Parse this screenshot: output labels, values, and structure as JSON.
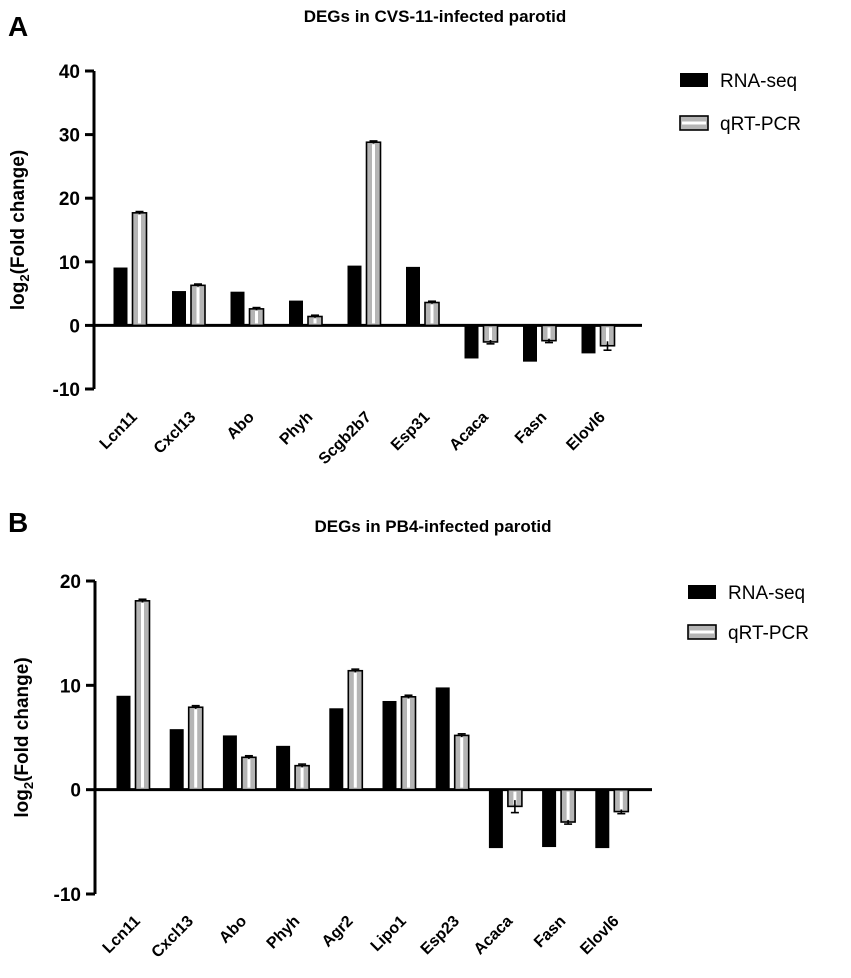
{
  "panels": [
    {
      "letter": "A"
    },
    {
      "letter": "B"
    }
  ],
  "chart_data": [
    {
      "type": "bar",
      "title": "DEGs in CVS-11-infected parotid",
      "ylabel_main": "log",
      "ylabel_sub": "2",
      "ylabel_rest": "(Fold change)",
      "xlabel": "",
      "ylim": [
        -10,
        40
      ],
      "yticks": [
        -10,
        0,
        10,
        20,
        30,
        40
      ],
      "categories": [
        "Lcn11",
        "Cxcl13",
        "Abo",
        "Phyh",
        "Scgb2b7",
        "Esp31",
        "Acaca",
        "Fasn",
        "Elovl6"
      ],
      "series": [
        {
          "name": "RNA-seq",
          "color": "#000000",
          "values": [
            9.1,
            5.4,
            5.3,
            3.9,
            9.4,
            9.2,
            -5.2,
            -5.7,
            -4.4
          ],
          "errors": [
            0,
            0,
            0,
            0,
            0,
            0,
            0,
            0,
            0
          ]
        },
        {
          "name": "qRT-PCR",
          "color": "#b5b5b5",
          "values": [
            17.7,
            6.3,
            2.6,
            1.4,
            28.8,
            3.6,
            -2.6,
            -2.4,
            -3.2
          ],
          "errors": [
            0.2,
            0.2,
            0.2,
            0.2,
            0.2,
            0.2,
            0.3,
            0.3,
            0.7
          ]
        }
      ],
      "legend": [
        "RNA-seq",
        "qRT-PCR"
      ]
    },
    {
      "type": "bar",
      "title": "DEGs in PB4-infected parotid",
      "ylabel_main": "log",
      "ylabel_sub": "2",
      "ylabel_rest": "(Fold change)",
      "xlabel": "",
      "ylim": [
        -10,
        20
      ],
      "yticks": [
        -10,
        0,
        10,
        20
      ],
      "categories": [
        "Lcn11",
        "Cxcl13",
        "Abo",
        "Phyh",
        "Agr2",
        "Lipo1",
        "Esp23",
        "Acaca",
        "Fasn",
        "Elovl6"
      ],
      "series": [
        {
          "name": "RNA-seq",
          "color": "#000000",
          "values": [
            9.0,
            5.8,
            5.2,
            4.2,
            7.8,
            8.5,
            9.8,
            -5.6,
            -5.5,
            -5.6
          ],
          "errors": [
            0,
            0,
            0,
            0,
            0,
            0,
            0,
            0,
            0,
            0
          ]
        },
        {
          "name": "qRT-PCR",
          "color": "#b5b5b5",
          "values": [
            18.1,
            7.9,
            3.1,
            2.3,
            11.4,
            8.9,
            5.2,
            -1.6,
            -3.1,
            -2.1
          ],
          "errors": [
            0.15,
            0.15,
            0.15,
            0.15,
            0.15,
            0.15,
            0.15,
            0.6,
            0.2,
            0.2
          ]
        }
      ],
      "legend": [
        "RNA-seq",
        "qRT-PCR"
      ]
    }
  ]
}
